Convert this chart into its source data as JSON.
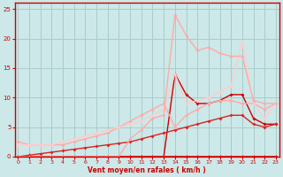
{
  "xlabel": "Vent moyen/en rafales ( km/h )",
  "xlim": [
    0,
    23
  ],
  "ylim": [
    0,
    26
  ],
  "yticks": [
    0,
    5,
    10,
    15,
    20,
    25
  ],
  "xticks": [
    0,
    1,
    2,
    3,
    4,
    5,
    6,
    7,
    8,
    9,
    10,
    11,
    12,
    13,
    14,
    15,
    16,
    17,
    18,
    19,
    20,
    21,
    22,
    23
  ],
  "bg_color": "#cce8e8",
  "grid_color": "#aacccc",
  "tick_color": "#cc0000",
  "series": [
    {
      "x": [
        0,
        1,
        2,
        3,
        4,
        5,
        6,
        7,
        8,
        9,
        10,
        11,
        12,
        13,
        14,
        15,
        16,
        17,
        18,
        19,
        20,
        21,
        22,
        23
      ],
      "y": [
        0,
        0,
        0,
        0,
        0,
        0,
        0,
        0,
        0,
        0,
        0,
        0,
        0,
        0,
        14,
        10.5,
        9,
        9,
        9.5,
        10.5,
        10.5,
        6.5,
        5.5,
        5.5
      ],
      "color": "#cc0000",
      "lw": 1.0,
      "marker": "D",
      "ms": 2.0
    },
    {
      "x": [
        0,
        1,
        2,
        3,
        4,
        5,
        6,
        7,
        8,
        9,
        10,
        11,
        12,
        13,
        14,
        15,
        16,
        17,
        18,
        19,
        20,
        21,
        22,
        23
      ],
      "y": [
        0,
        0,
        0,
        0,
        0,
        0,
        0,
        0,
        0,
        0,
        0,
        0,
        0,
        0,
        0,
        0,
        0,
        0,
        0,
        0,
        0,
        0,
        0,
        0
      ],
      "color": "#cc0000",
      "lw": 1.0,
      "marker": "D",
      "ms": 2.0
    },
    {
      "x": [
        0,
        1,
        2,
        3,
        4,
        5,
        6,
        7,
        8,
        9,
        10,
        11,
        12,
        13,
        14,
        15,
        16,
        17,
        18,
        19,
        20,
        21,
        22,
        23
      ],
      "y": [
        0,
        0.25,
        0.5,
        0.75,
        1,
        1.25,
        1.5,
        1.75,
        2,
        2.25,
        2.5,
        3,
        3.5,
        4,
        4.5,
        5,
        5.5,
        6,
        6.5,
        7,
        7,
        5.5,
        5,
        5.5
      ],
      "color": "#dd2222",
      "lw": 1.0,
      "marker": "D",
      "ms": 2.0
    },
    {
      "x": [
        0,
        1,
        2,
        3,
        4,
        5,
        6,
        7,
        8,
        9,
        10,
        11,
        12,
        13,
        14,
        15,
        16,
        17,
        18,
        19,
        20,
        21,
        22,
        23
      ],
      "y": [
        0,
        0,
        0,
        0,
        0,
        0,
        0,
        0,
        0,
        0,
        0,
        0,
        0,
        0,
        0,
        0,
        0,
        0,
        0,
        0,
        0,
        0,
        0,
        0
      ],
      "color": "#ee1111",
      "lw": 1.2,
      "marker": "D",
      "ms": 2.0
    },
    {
      "x": [
        0,
        1,
        2,
        3,
        4,
        5,
        6,
        7,
        8,
        9,
        10,
        11,
        12,
        13,
        14,
        15,
        16,
        17,
        18,
        19,
        20,
        21,
        22,
        23
      ],
      "y": [
        2.5,
        2,
        2,
        2,
        2,
        2.5,
        3,
        3.5,
        4,
        5,
        6,
        7,
        8,
        9,
        5,
        7,
        8,
        9,
        9.5,
        9.5,
        9,
        9,
        8,
        9
      ],
      "color": "#ffaaaa",
      "lw": 1.0,
      "marker": "D",
      "ms": 2.0
    },
    {
      "x": [
        0,
        1,
        2,
        3,
        4,
        5,
        6,
        7,
        8,
        9,
        10,
        11,
        12,
        13,
        14,
        15,
        16,
        17,
        18,
        19,
        20,
        21,
        22,
        23
      ],
      "y": [
        2,
        2,
        2,
        2,
        2.5,
        3,
        3.5,
        4,
        4.5,
        5,
        5.5,
        6,
        7,
        8,
        14,
        9,
        9.5,
        10,
        11,
        12,
        19.5,
        9,
        6.5,
        9
      ],
      "color": "#ffcccc",
      "lw": 1.0,
      "marker": "D",
      "ms": 2.0
    },
    {
      "x": [
        0,
        1,
        2,
        3,
        4,
        5,
        6,
        7,
        8,
        9,
        10,
        11,
        12,
        13,
        14,
        15,
        16,
        17,
        18,
        19,
        20,
        21,
        22,
        23
      ],
      "y": [
        0,
        0,
        0,
        0,
        0,
        0,
        0,
        0,
        0,
        0,
        3,
        4.5,
        6.5,
        7,
        24,
        20.5,
        18,
        18.5,
        17.5,
        17,
        17,
        9.5,
        9,
        9
      ],
      "color": "#ffaaaa",
      "lw": 1.0,
      "marker": "D",
      "ms": 2.0
    }
  ]
}
